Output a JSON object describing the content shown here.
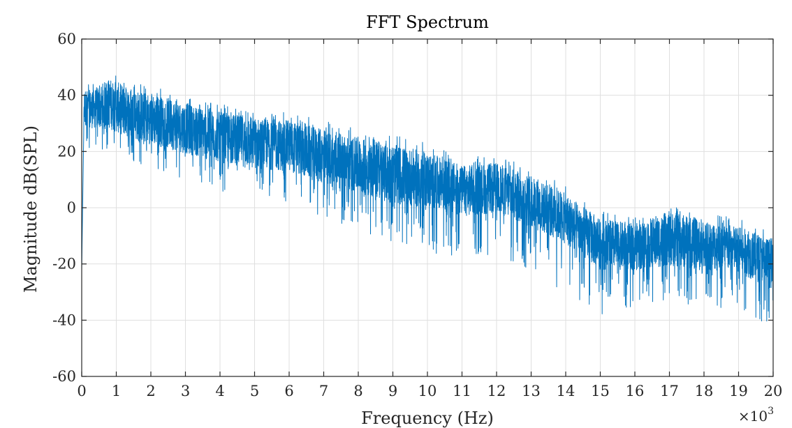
{
  "chart_data": {
    "type": "line",
    "title": "FFT Spectrum",
    "xlabel": "Frequency (Hz)",
    "ylabel": "Magnitude dB(SPL)",
    "x_multiplier_label": "×10",
    "x_multiplier_exponent": "3",
    "xlim": [
      0,
      20000
    ],
    "ylim": [
      -60,
      60
    ],
    "x_ticks": [
      0,
      1000,
      2000,
      3000,
      4000,
      5000,
      6000,
      7000,
      8000,
      9000,
      10000,
      11000,
      12000,
      13000,
      14000,
      15000,
      16000,
      17000,
      18000,
      19000,
      20000
    ],
    "x_tick_labels": [
      "0",
      "1",
      "2",
      "3",
      "4",
      "5",
      "6",
      "7",
      "8",
      "9",
      "10",
      "11",
      "12",
      "13",
      "14",
      "15",
      "16",
      "17",
      "18",
      "19",
      "20"
    ],
    "y_ticks": [
      -60,
      -40,
      -20,
      0,
      20,
      40,
      60
    ],
    "y_tick_labels": [
      "-60",
      "-40",
      "-20",
      "0",
      "20",
      "40",
      "60"
    ],
    "grid": true,
    "line_color": "#0072BD",
    "series": [
      {
        "envelope": {
          "x": [
            0,
            300,
            800,
            1500,
            2500,
            4000,
            5000,
            6000,
            7000,
            8000,
            9000,
            10000,
            11000,
            12000,
            13000,
            14000,
            15000,
            16000,
            17000,
            18000,
            19000,
            20000
          ],
          "mean": [
            36,
            35,
            37,
            33,
            30,
            25,
            23,
            22,
            18,
            15,
            12,
            10,
            6,
            7,
            2,
            -4,
            -13,
            -14,
            -11,
            -13,
            -15,
            -20
          ],
          "upper": [
            44,
            44,
            49,
            45,
            42,
            37,
            35,
            34,
            31,
            28,
            26,
            23,
            18,
            19,
            14,
            8,
            -1,
            -3,
            2,
            -1,
            -4,
            -8
          ],
          "lower": [
            18,
            18,
            20,
            16,
            12,
            6,
            4,
            2,
            -4,
            -8,
            -12,
            -15,
            -20,
            -18,
            -24,
            -30,
            -38,
            -37,
            -33,
            -36,
            -38,
            -42
          ]
        }
      }
    ]
  }
}
